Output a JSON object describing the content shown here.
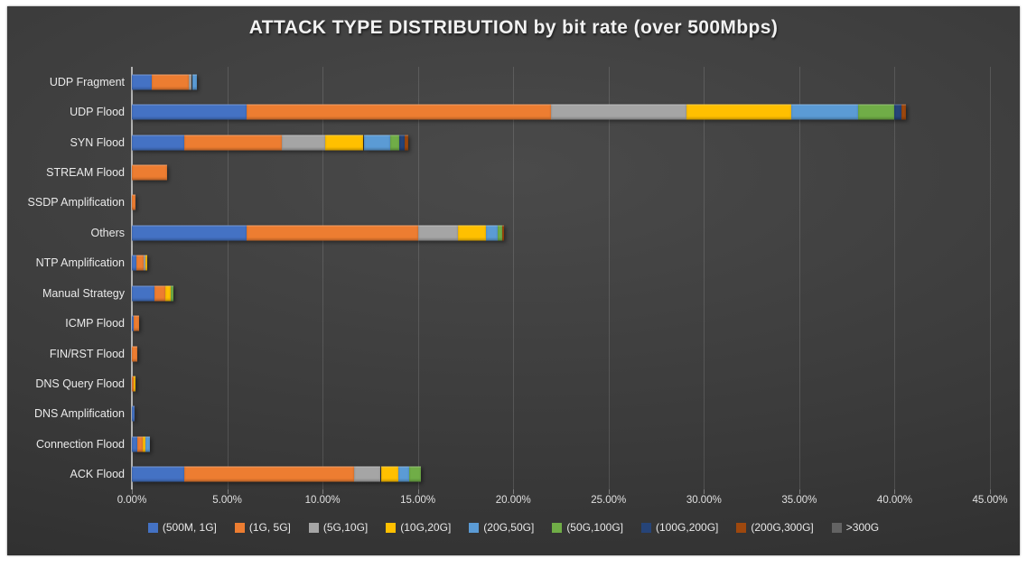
{
  "title": "ATTACK TYPE DISTRIBUTION by bit rate (over 500Mbps)",
  "colors": {
    "background_center": "#4a4a4a",
    "background_edge": "#2b2b2b",
    "gridline": "rgba(255,255,255,0.13)",
    "axis_line": "#b3b3b3",
    "text": "#eaeaea"
  },
  "chart_data": {
    "type": "bar",
    "orientation": "horizontal",
    "stacked": true,
    "title": "ATTACK TYPE DISTRIBUTION by bit rate (over 500Mbps)",
    "xlabel": "",
    "ylabel": "",
    "xlim": [
      0,
      45
    ],
    "x_tick_labels": [
      "0.00%",
      "5.00%",
      "10.00%",
      "15.00%",
      "20.00%",
      "25.00%",
      "30.00%",
      "35.00%",
      "40.00%",
      "45.00%"
    ],
    "grid": true,
    "legend_position": "bottom",
    "categories": [
      "UDP Fragment",
      "UDP Flood",
      "SYN Flood",
      "STREAM Flood",
      "SSDP Amplification",
      "Others",
      "NTP Amplification",
      "Manual Strategy",
      "ICMP Flood",
      "FIN/RST Flood",
      "DNS Query Flood",
      "DNS Amplification",
      "Connection Flood",
      "ACK Flood"
    ],
    "series": [
      {
        "name": "(500M, 1G]",
        "color": "#4472C4",
        "values": [
          1.05,
          6.0,
          2.75,
          0,
          0,
          6.0,
          0.25,
          1.2,
          0.1,
          0,
          0,
          0.15,
          0.3,
          2.75
        ]
      },
      {
        "name": "(1G, 5G]",
        "color": "#ED7D31",
        "values": [
          1.95,
          16.0,
          5.1,
          1.85,
          0.2,
          9.0,
          0.35,
          0.55,
          0.27,
          0.3,
          0.08,
          0,
          0.28,
          8.9
        ]
      },
      {
        "name": "(5G,10G]",
        "color": "#A5A5A5",
        "values": [
          0.15,
          7.1,
          2.3,
          0,
          0,
          2.1,
          0.1,
          0,
          0,
          0,
          0,
          0,
          0,
          1.4
        ]
      },
      {
        "name": "(10G,20G]",
        "color": "#FFC000",
        "values": [
          0,
          5.5,
          2.0,
          0,
          0,
          1.45,
          0.1,
          0.27,
          0,
          0,
          0.12,
          0,
          0.13,
          0.9
        ]
      },
      {
        "name": "(20G,50G]",
        "color": "#5B9BD5",
        "values": [
          0.25,
          3.5,
          1.4,
          0,
          0,
          0.65,
          0,
          0,
          0,
          0,
          0,
          0,
          0.24,
          0.6
        ]
      },
      {
        "name": "(50G,100G]",
        "color": "#70AD47",
        "values": [
          0,
          1.9,
          0.45,
          0,
          0,
          0.2,
          0,
          0.18,
          0,
          0,
          0,
          0,
          0,
          0.6
        ]
      },
      {
        "name": "(100G,200G]",
        "color": "#264478",
        "values": [
          0,
          0.35,
          0.3,
          0,
          0,
          0,
          0,
          0,
          0,
          0,
          0,
          0,
          0,
          0
        ]
      },
      {
        "name": "(200G,300G]",
        "color": "#9E480E",
        "values": [
          0,
          0.25,
          0.2,
          0,
          0,
          0.1,
          0,
          0,
          0,
          0,
          0,
          0,
          0,
          0
        ]
      },
      {
        "name": ">300G",
        "color": "#636363",
        "values": [
          0,
          0,
          0,
          0,
          0,
          0,
          0,
          0,
          0,
          0,
          0,
          0,
          0,
          0
        ]
      }
    ]
  }
}
